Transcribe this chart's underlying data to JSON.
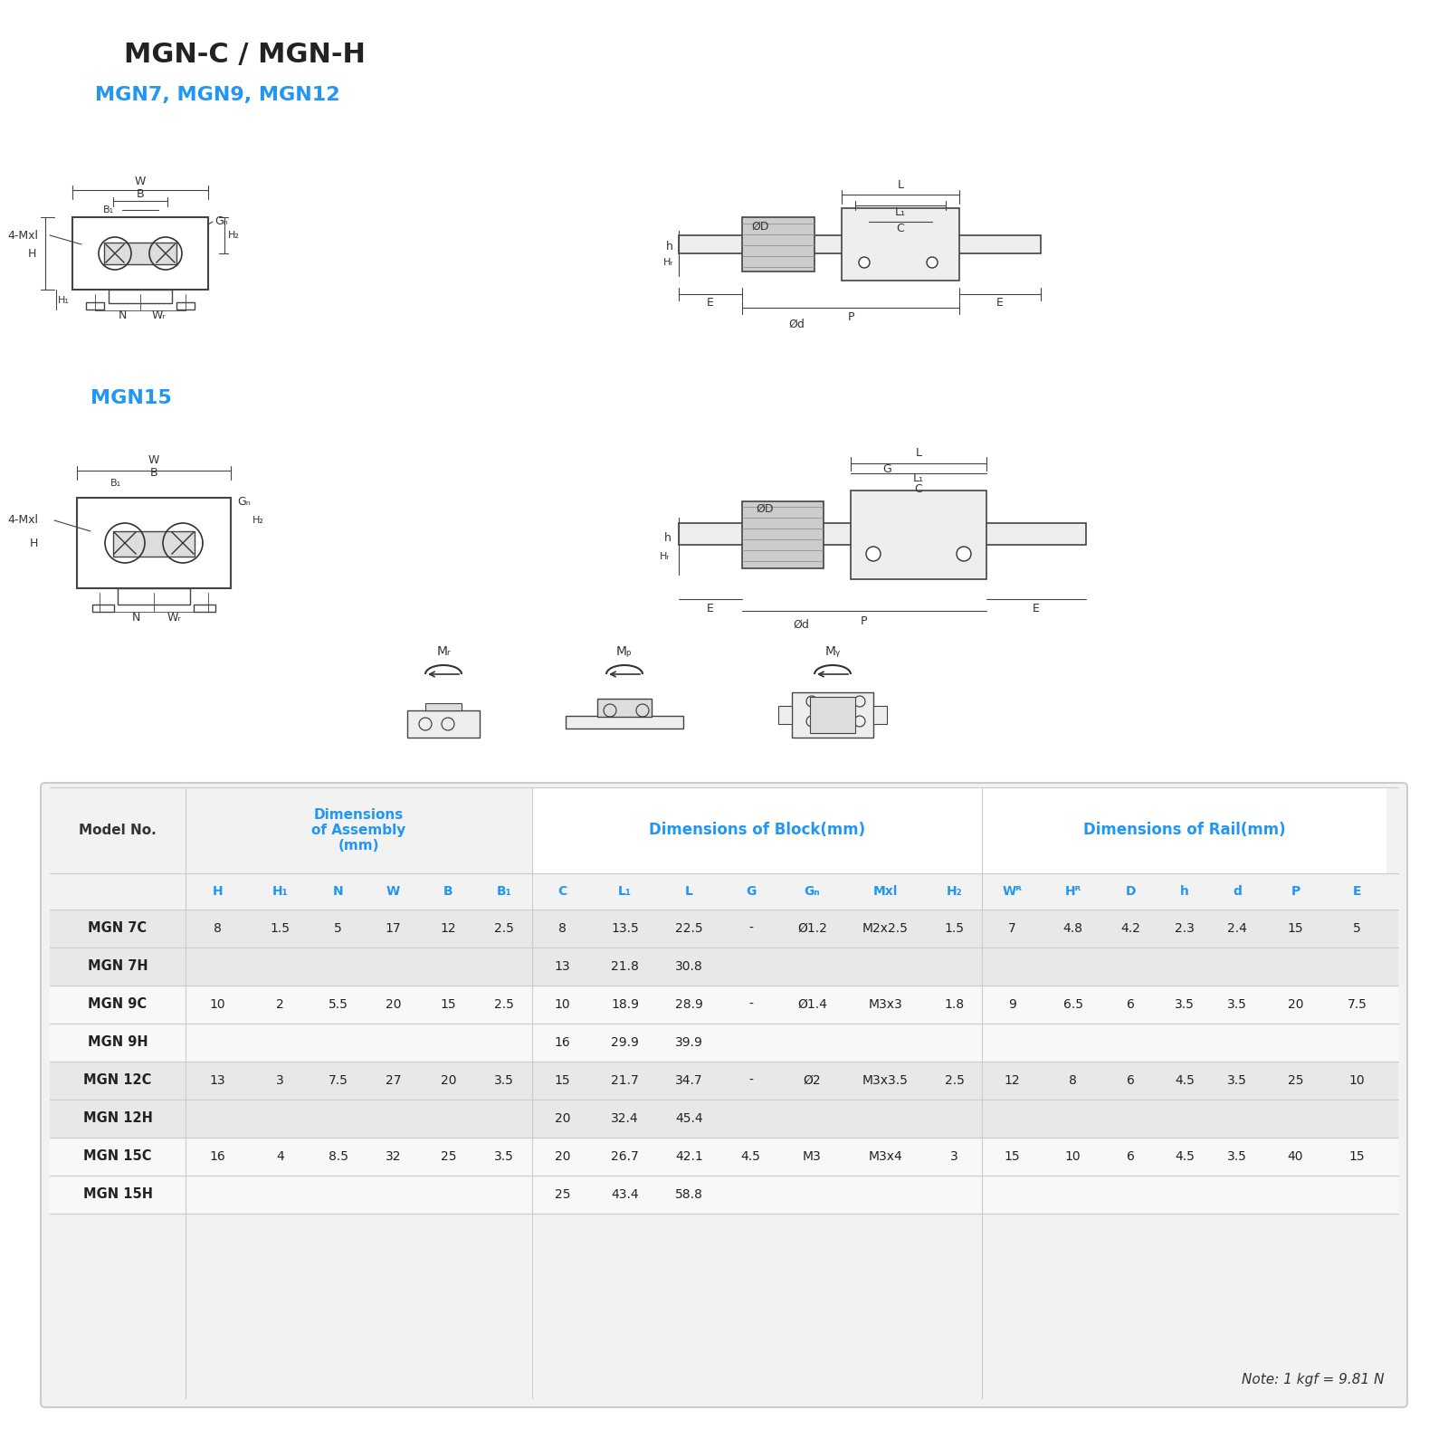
{
  "title": "MGN-C / MGN-H",
  "subtitle": "MGN7, MGN9, MGN12",
  "subtitle2": "MGN15",
  "title_color": "#222222",
  "subtitle_color": "#2196F3",
  "bg_color": "#ffffff",
  "table_bg": "#f0f0f0",
  "header_color": "#2196F3",
  "table_header_row_bg": "#ffffff",
  "col_header_color": "#2196F3",
  "model_col_color": "#2196F3",
  "row_bg_even": "#e8e8e8",
  "row_bg_odd": "#ffffff",
  "table_data": [
    [
      "MGN 7C",
      "8",
      "1.5",
      "5",
      "17",
      "12",
      "2.5",
      "8",
      "13.5",
      "22.5",
      "-",
      "Ø1.2",
      "M2x2.5",
      "1.5",
      "7",
      "4.8",
      "4.2",
      "2.3",
      "2.4",
      "15",
      "5"
    ],
    [
      "MGN 7H",
      "",
      "",
      "",
      "",
      "",
      "",
      "13",
      "21.8",
      "30.8",
      "",
      "",
      "",
      "",
      "",
      "",
      "",
      "",
      "",
      "",
      ""
    ],
    [
      "MGN 9C",
      "10",
      "2",
      "5.5",
      "20",
      "15",
      "2.5",
      "10",
      "18.9",
      "28.9",
      "-",
      "Ø1.4",
      "M3x3",
      "1.8",
      "9",
      "6.5",
      "6",
      "3.5",
      "3.5",
      "20",
      "7.5"
    ],
    [
      "MGN 9H",
      "",
      "",
      "",
      "",
      "",
      "",
      "16",
      "29.9",
      "39.9",
      "",
      "",
      "",
      "",
      "",
      "",
      "",
      "",
      "",
      "",
      ""
    ],
    [
      "MGN 12C",
      "13",
      "3",
      "7.5",
      "27",
      "20",
      "3.5",
      "15",
      "21.7",
      "34.7",
      "-",
      "Ø2",
      "M3x3.5",
      "2.5",
      "12",
      "8",
      "6",
      "4.5",
      "3.5",
      "25",
      "10"
    ],
    [
      "MGN 12H",
      "",
      "",
      "",
      "",
      "",
      "",
      "20",
      "32.4",
      "45.4",
      "",
      "",
      "",
      "",
      "",
      "",
      "",
      "",
      "",
      "",
      ""
    ],
    [
      "MGN 15C",
      "16",
      "4",
      "8.5",
      "32",
      "25",
      "3.5",
      "20",
      "26.7",
      "42.1",
      "4.5",
      "M3",
      "M3x4",
      "3",
      "15",
      "10",
      "6",
      "4.5",
      "3.5",
      "40",
      "15"
    ],
    [
      "MGN 15H",
      "",
      "",
      "",
      "",
      "",
      "",
      "25",
      "43.4",
      "58.8",
      "",
      "",
      "",
      "",
      "",
      "",
      "",
      "",
      "",
      "",
      ""
    ]
  ],
  "col_headers": [
    "H",
    "H₁",
    "N",
    "W",
    "B",
    "B₁",
    "C",
    "L₁",
    "L",
    "G",
    "Gₙ",
    "Mxl",
    "H₂",
    "Wᴿ",
    "Hᴿ",
    "D",
    "h",
    "d",
    "P",
    "E"
  ],
  "col_section_headers": [
    {
      "label": "Dimensions\nof Assembly\n(mm)",
      "start": 0,
      "end": 5
    },
    {
      "label": "Dimensions of Block(mm)",
      "start": 6,
      "end": 12
    },
    {
      "label": "Dimensions of Rail(mm)",
      "start": 13,
      "end": 19
    }
  ],
  "note": "Note: 1 kgf = 9.81 N"
}
